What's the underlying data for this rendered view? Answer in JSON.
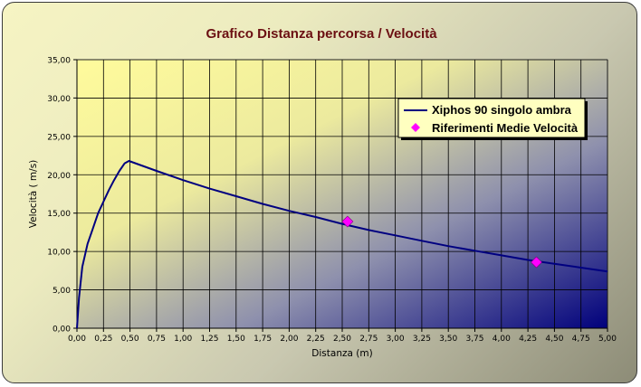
{
  "chart_data": {
    "type": "line",
    "title": "Grafico Distanza percorsa / Velocità",
    "xlabel": "Distanza (m)",
    "ylabel": "Velocità ( m/s)",
    "xlim": [
      0,
      5
    ],
    "ylim": [
      0,
      35
    ],
    "x_ticks": [
      "0,00",
      "0,25",
      "0,50",
      "0,75",
      "1,00",
      "1,25",
      "1,50",
      "1,75",
      "2,00",
      "2,25",
      "2,50",
      "2,75",
      "3,00",
      "3,25",
      "3,50",
      "3,75",
      "4,00",
      "4,25",
      "4,50",
      "4,75",
      "5,00"
    ],
    "y_ticks": [
      "0,00",
      "5,00",
      "10,00",
      "15,00",
      "20,00",
      "25,00",
      "30,00",
      "35,00"
    ],
    "grid": true,
    "legend_position": "top-right",
    "series": [
      {
        "name": "Xiphos 90 singolo ambra",
        "kind": "line",
        "color": "#000080",
        "x": [
          0.0,
          0.02,
          0.05,
          0.1,
          0.15,
          0.2,
          0.25,
          0.3,
          0.35,
          0.4,
          0.45,
          0.49,
          0.75,
          1.0,
          1.25,
          1.5,
          1.75,
          2.0,
          2.25,
          2.5,
          2.75,
          3.0,
          3.25,
          3.5,
          3.75,
          4.0,
          4.25,
          4.5,
          4.75,
          5.0
        ],
        "y": [
          0.0,
          4.0,
          8.0,
          11.0,
          13.0,
          15.0,
          16.5,
          18.0,
          19.3,
          20.5,
          21.5,
          21.8,
          20.5,
          19.3,
          18.2,
          17.2,
          16.2,
          15.3,
          14.5,
          13.6,
          12.8,
          12.1,
          11.4,
          10.7,
          10.1,
          9.5,
          8.9,
          8.4,
          7.9,
          7.4
        ]
      },
      {
        "name": "Riferimenti Medie Velocità",
        "kind": "scatter",
        "color": "#ff00ff",
        "x": [
          2.55,
          4.33
        ],
        "y": [
          13.9,
          8.6
        ]
      }
    ]
  }
}
